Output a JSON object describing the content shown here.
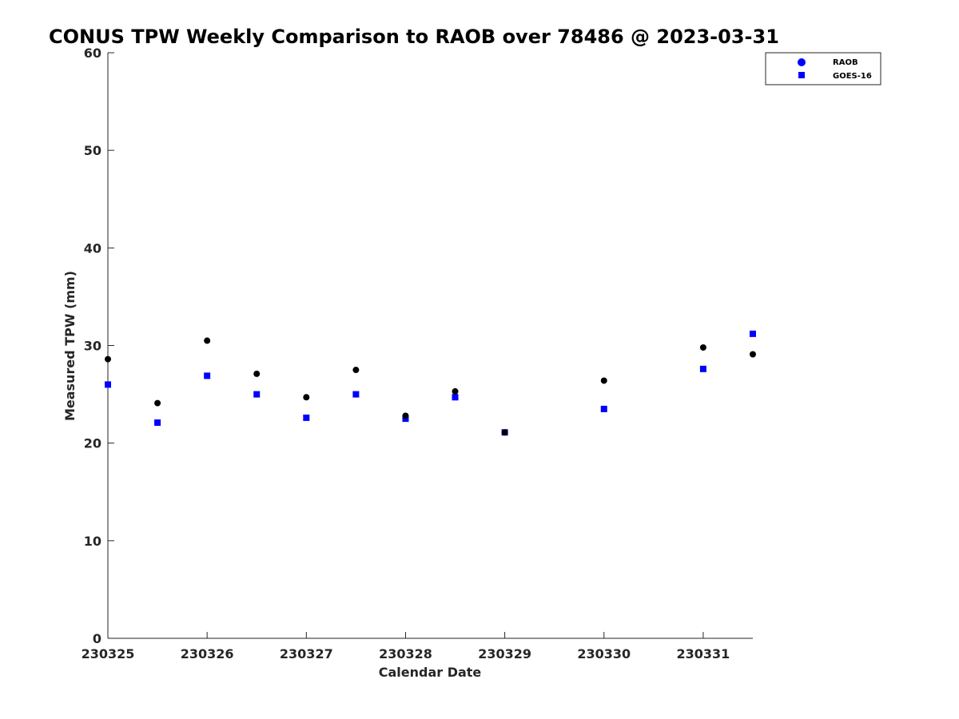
{
  "chart_data": {
    "type": "scatter",
    "title": "CONUS TPW Weekly Comparison to RAOB over 78486 @ 2023-03-31",
    "xlabel": "Calendar Date",
    "ylabel": "Measured TPW (mm)",
    "xlim": [
      0,
      6.5
    ],
    "ylim": [
      0,
      60
    ],
    "xticks": [
      {
        "value": 0,
        "label": "230325"
      },
      {
        "value": 1,
        "label": "230326"
      },
      {
        "value": 2,
        "label": "230327"
      },
      {
        "value": 3,
        "label": "230328"
      },
      {
        "value": 4,
        "label": "230329"
      },
      {
        "value": 5,
        "label": "230330"
      },
      {
        "value": 6,
        "label": "230331"
      }
    ],
    "yticks": [
      0,
      10,
      20,
      30,
      40,
      50,
      60
    ],
    "grid": false,
    "legend_position": "top-right",
    "series": [
      {
        "name": "RAOB",
        "marker": "circle",
        "legend_color": "#0000ff",
        "color": "#000000",
        "points": [
          {
            "x": 0,
            "y": 28.6
          },
          {
            "x": 0.5,
            "y": 24.1
          },
          {
            "x": 1,
            "y": 30.5
          },
          {
            "x": 1.5,
            "y": 27.1
          },
          {
            "x": 2,
            "y": 24.7
          },
          {
            "x": 2.5,
            "y": 27.5
          },
          {
            "x": 3,
            "y": 22.8
          },
          {
            "x": 3.5,
            "y": 25.3
          },
          {
            "x": 4,
            "y": 21.1
          },
          {
            "x": 5,
            "y": 26.4
          },
          {
            "x": 6,
            "y": 29.8
          },
          {
            "x": 6.5,
            "y": 29.1
          }
        ]
      },
      {
        "name": "GOES-16",
        "marker": "square",
        "color": "#0000ff",
        "points": [
          {
            "x": 0,
            "y": 26.0
          },
          {
            "x": 0.5,
            "y": 22.1
          },
          {
            "x": 1,
            "y": 26.9
          },
          {
            "x": 1.5,
            "y": 25.0
          },
          {
            "x": 2,
            "y": 22.6
          },
          {
            "x": 2.5,
            "y": 25.0
          },
          {
            "x": 3,
            "y": 22.5
          },
          {
            "x": 3.5,
            "y": 24.7
          },
          {
            "x": 4,
            "y": 21.1
          },
          {
            "x": 5,
            "y": 23.5
          },
          {
            "x": 6,
            "y": 27.6
          },
          {
            "x": 6.5,
            "y": 31.2
          }
        ]
      }
    ]
  }
}
